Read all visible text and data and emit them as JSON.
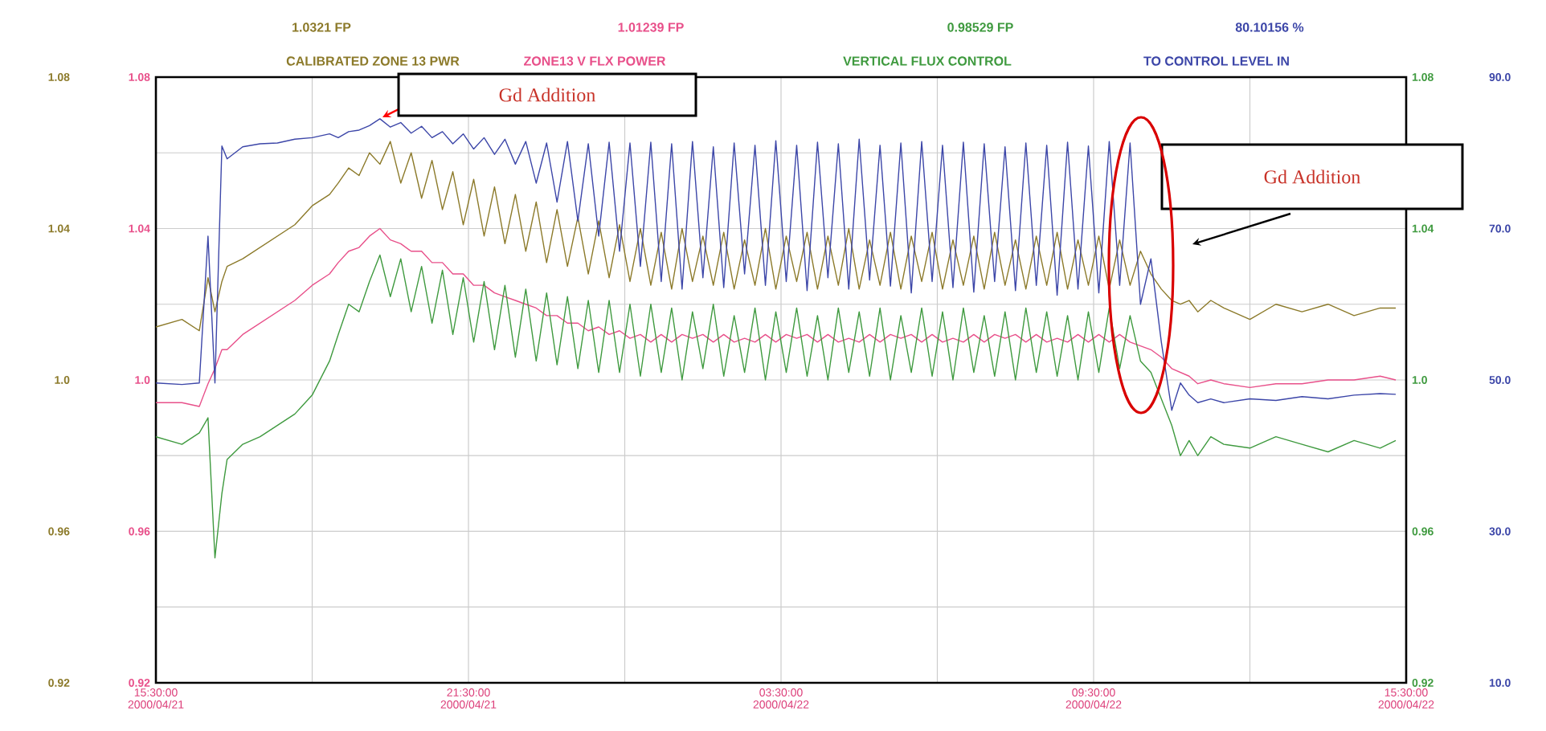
{
  "chart_data": {
    "type": "line",
    "xlim": [
      "2000-04-21T15:30",
      "2000-04-22T15:30"
    ],
    "xticks": [
      {
        "value": "2000-04-21T15:30",
        "label": "15:30:00 2000/04/21"
      },
      {
        "value": "2000-04-21T18:30",
        "label": null
      },
      {
        "value": "2000-04-21T21:30",
        "label": "21:30:00 2000/04/21"
      },
      {
        "value": "2000-04-22T00:30",
        "label": null
      },
      {
        "value": "2000-04-22T03:30",
        "label": "03:30:00 2000/04/22"
      },
      {
        "value": "2000-04-22T06:30",
        "label": null
      },
      {
        "value": "2000-04-22T09:30",
        "label": "09:30:00 2000/04/22"
      },
      {
        "value": "2000-04-22T12:30",
        "label": null
      },
      {
        "value": "2000-04-22T15:30",
        "label": "15:30:00 2000/04/22"
      }
    ],
    "ylim": [
      0.92,
      1.08
    ],
    "yticks": [
      {
        "value": 0.92,
        "label": "0.92"
      },
      {
        "value": 0.94,
        "label": null
      },
      {
        "value": 0.96,
        "label": "0.96"
      },
      {
        "value": 0.98,
        "label": null
      },
      {
        "value": 1.0,
        "label": "1.0"
      },
      {
        "value": 1.02,
        "label": null
      },
      {
        "value": 1.04,
        "label": "1.04"
      },
      {
        "value": 1.06,
        "label": null
      },
      {
        "value": 1.08,
        "label": "1.08"
      }
    ],
    "y2lim": [
      0.92,
      1.08
    ],
    "y2ticks": [
      0.92,
      0.96,
      {
        "value": 1.0,
        "label": "1.0"
      },
      1.04,
      1.08
    ],
    "y3lim": [
      10,
      90
    ],
    "y3ticks": [
      {
        "value": 10,
        "label": "10.0"
      },
      {
        "value": 30,
        "label": "30.0"
      },
      {
        "value": 50,
        "label": "50.0"
      },
      {
        "value": 70,
        "label": "70.0"
      },
      {
        "value": 90,
        "label": "90.0"
      }
    ],
    "grid": true,
    "legend": "top",
    "marker": "none",
    "line_style": "solid",
    "annotations": [
      "1.0321 FP",
      "1.01239 FP",
      "0.98529 FP",
      "80.10156 %",
      "Gd Addition",
      "Gd Addition"
    ],
    "x": [
      "2000-04-21T15:30",
      "2000-04-21T16:00",
      "2000-04-21T16:20",
      "2000-04-21T16:30",
      "2000-04-21T16:38",
      "2000-04-21T16:46",
      "2000-04-21T16:52",
      "2000-04-21T17:10",
      "2000-04-21T17:30",
      "2000-04-21T17:50",
      "2000-04-21T18:10",
      "2000-04-21T18:30",
      "2000-04-21T18:50",
      "2000-04-21T19:00",
      "2000-04-21T19:12",
      "2000-04-21T19:24",
      "2000-04-21T19:36",
      "2000-04-21T19:48",
      "2000-04-21T20:00",
      "2000-04-21T20:12",
      "2000-04-21T20:24",
      "2000-04-21T20:36",
      "2000-04-21T20:48",
      "2000-04-21T21:00",
      "2000-04-21T21:12",
      "2000-04-21T21:24",
      "2000-04-21T21:36",
      "2000-04-21T21:48",
      "2000-04-21T22:00",
      "2000-04-21T22:12",
      "2000-04-21T22:24",
      "2000-04-21T22:36",
      "2000-04-21T22:48",
      "2000-04-21T23:00",
      "2000-04-21T23:12",
      "2000-04-21T23:24",
      "2000-04-21T23:36",
      "2000-04-21T23:48",
      "2000-04-22T00:00",
      "2000-04-22T00:12",
      "2000-04-22T00:24",
      "2000-04-22T00:36",
      "2000-04-22T00:48",
      "2000-04-22T01:00",
      "2000-04-22T01:12",
      "2000-04-22T01:24",
      "2000-04-22T01:36",
      "2000-04-22T01:48",
      "2000-04-22T02:00",
      "2000-04-22T02:12",
      "2000-04-22T02:24",
      "2000-04-22T02:36",
      "2000-04-22T02:48",
      "2000-04-22T03:00",
      "2000-04-22T03:12",
      "2000-04-22T03:24",
      "2000-04-22T03:36",
      "2000-04-22T03:48",
      "2000-04-22T04:00",
      "2000-04-22T04:12",
      "2000-04-22T04:24",
      "2000-04-22T04:36",
      "2000-04-22T04:48",
      "2000-04-22T05:00",
      "2000-04-22T05:12",
      "2000-04-22T05:24",
      "2000-04-22T05:36",
      "2000-04-22T05:48",
      "2000-04-22T06:00",
      "2000-04-22T06:12",
      "2000-04-22T06:24",
      "2000-04-22T06:36",
      "2000-04-22T06:48",
      "2000-04-22T07:00",
      "2000-04-22T07:12",
      "2000-04-22T07:24",
      "2000-04-22T07:36",
      "2000-04-22T07:48",
      "2000-04-22T08:00",
      "2000-04-22T08:12",
      "2000-04-22T08:24",
      "2000-04-22T08:36",
      "2000-04-22T08:48",
      "2000-04-22T09:00",
      "2000-04-22T09:12",
      "2000-04-22T09:24",
      "2000-04-22T09:36",
      "2000-04-22T09:48",
      "2000-04-22T10:00",
      "2000-04-22T10:12",
      "2000-04-22T10:24",
      "2000-04-22T10:36",
      "2000-04-22T10:48",
      "2000-04-22T11:00",
      "2000-04-22T11:10",
      "2000-04-22T11:20",
      "2000-04-22T11:30",
      "2000-04-22T11:45",
      "2000-04-22T12:00",
      "2000-04-22T12:30",
      "2000-04-22T13:00",
      "2000-04-22T13:30",
      "2000-04-22T14:00",
      "2000-04-22T14:30",
      "2000-04-22T15:00",
      "2000-04-22T15:18"
    ],
    "series": [
      {
        "name": "CALIBRATED ZONE 13 PWR",
        "color": "#8c7a2a",
        "values": [
          1.014,
          1.016,
          1.013,
          1.027,
          1.018,
          1.026,
          1.03,
          1.032,
          1.035,
          1.038,
          1.041,
          1.046,
          1.049,
          1.052,
          1.056,
          1.054,
          1.06,
          1.057,
          1.063,
          1.052,
          1.06,
          1.048,
          1.058,
          1.045,
          1.055,
          1.041,
          1.053,
          1.038,
          1.051,
          1.036,
          1.049,
          1.034,
          1.047,
          1.031,
          1.045,
          1.03,
          1.043,
          1.028,
          1.042,
          1.027,
          1.041,
          1.026,
          1.04,
          1.025,
          1.039,
          1.024,
          1.04,
          1.026,
          1.038,
          1.025,
          1.039,
          1.024,
          1.037,
          1.025,
          1.04,
          1.024,
          1.038,
          1.026,
          1.039,
          1.024,
          1.038,
          1.025,
          1.04,
          1.024,
          1.037,
          1.025,
          1.039,
          1.024,
          1.038,
          1.026,
          1.039,
          1.024,
          1.037,
          1.025,
          1.038,
          1.024,
          1.039,
          1.025,
          1.037,
          1.024,
          1.038,
          1.025,
          1.039,
          1.024,
          1.037,
          1.025,
          1.038,
          1.024,
          1.037,
          1.025,
          1.034,
          1.028,
          1.024,
          1.021,
          1.02,
          1.021,
          1.018,
          1.021,
          1.019,
          1.016,
          1.02,
          1.018,
          1.02,
          1.017,
          1.019,
          1.019
        ]
      },
      {
        "name": "ZONE13 V FLX POWER",
        "color": "#e8508a",
        "values": [
          0.994,
          0.994,
          0.993,
          0.999,
          1.003,
          1.008,
          1.008,
          1.012,
          1.015,
          1.018,
          1.021,
          1.025,
          1.028,
          1.031,
          1.034,
          1.035,
          1.038,
          1.04,
          1.037,
          1.036,
          1.034,
          1.034,
          1.031,
          1.031,
          1.028,
          1.028,
          1.025,
          1.025,
          1.023,
          1.022,
          1.021,
          1.02,
          1.019,
          1.017,
          1.017,
          1.015,
          1.015,
          1.013,
          1.014,
          1.012,
          1.013,
          1.011,
          1.012,
          1.01,
          1.012,
          1.01,
          1.012,
          1.011,
          1.012,
          1.01,
          1.012,
          1.01,
          1.011,
          1.01,
          1.012,
          1.01,
          1.012,
          1.011,
          1.012,
          1.01,
          1.012,
          1.01,
          1.011,
          1.01,
          1.012,
          1.01,
          1.012,
          1.011,
          1.012,
          1.01,
          1.012,
          1.01,
          1.011,
          1.01,
          1.012,
          1.01,
          1.012,
          1.011,
          1.012,
          1.01,
          1.012,
          1.01,
          1.011,
          1.01,
          1.012,
          1.01,
          1.012,
          1.01,
          1.012,
          1.01,
          1.009,
          1.008,
          1.006,
          1.003,
          1.002,
          1.001,
          0.999,
          1.0,
          0.999,
          0.998,
          0.999,
          0.999,
          1.0,
          1.0,
          1.001,
          1.0
        ]
      },
      {
        "name": "VERTICAL FLUX CONTROL",
        "color": "#3f9a3f",
        "axis": "y2",
        "values": [
          0.985,
          0.983,
          0.986,
          0.99,
          0.953,
          0.97,
          0.979,
          0.983,
          0.985,
          0.988,
          0.991,
          0.996,
          1.005,
          1.012,
          1.02,
          1.018,
          1.026,
          1.033,
          1.022,
          1.032,
          1.018,
          1.03,
          1.015,
          1.029,
          1.012,
          1.027,
          1.01,
          1.026,
          1.008,
          1.025,
          1.006,
          1.024,
          1.005,
          1.023,
          1.004,
          1.022,
          1.003,
          1.021,
          1.002,
          1.021,
          1.002,
          1.02,
          1.001,
          1.02,
          1.002,
          1.019,
          1.0,
          1.018,
          1.003,
          1.02,
          1.001,
          1.017,
          1.002,
          1.019,
          1.0,
          1.018,
          1.002,
          1.019,
          1.001,
          1.017,
          1.0,
          1.019,
          1.002,
          1.018,
          1.001,
          1.019,
          1.0,
          1.017,
          1.002,
          1.019,
          1.001,
          1.018,
          1.0,
          1.019,
          1.002,
          1.017,
          1.001,
          1.018,
          1.0,
          1.019,
          1.002,
          1.018,
          1.001,
          1.017,
          1.0,
          1.018,
          1.002,
          1.019,
          1.003,
          1.017,
          1.005,
          1.002,
          0.995,
          0.988,
          0.98,
          0.984,
          0.98,
          0.985,
          0.983,
          0.982,
          0.985,
          0.983,
          0.981,
          0.984,
          0.982,
          0.984
        ]
      },
      {
        "name": "TO CONTROL LEVEL IN",
        "color": "#3c46a8",
        "axis": "y3",
        "values": [
          49.6,
          49.4,
          49.6,
          69.0,
          49.6,
          80.9,
          79.2,
          80.8,
          81.2,
          81.3,
          81.8,
          82.0,
          82.5,
          82.0,
          82.8,
          83.0,
          83.6,
          84.5,
          83.4,
          84.0,
          82.6,
          83.5,
          82.0,
          82.8,
          81.2,
          82.5,
          80.5,
          82.0,
          79.8,
          81.8,
          78.5,
          81.5,
          76.0,
          81.3,
          73.5,
          81.5,
          71.0,
          81.2,
          69.0,
          81.4,
          67.0,
          81.3,
          65.0,
          81.4,
          63.0,
          81.2,
          62.0,
          81.5,
          63.5,
          80.8,
          62.2,
          81.3,
          64.0,
          81.0,
          62.5,
          81.6,
          63.0,
          81.0,
          61.8,
          81.4,
          63.5,
          81.2,
          62.0,
          81.8,
          63.2,
          81.0,
          62.4,
          81.3,
          61.5,
          81.5,
          63.0,
          81.0,
          62.2,
          81.4,
          61.6,
          81.2,
          63.0,
          80.8,
          61.8,
          81.3,
          62.5,
          81.0,
          61.2,
          81.4,
          62.0,
          80.9,
          61.5,
          81.5,
          62.5,
          81.3,
          60.0,
          66.0,
          55.0,
          46.0,
          49.6,
          48.0,
          47.0,
          47.5,
          47.0,
          47.5,
          47.3,
          47.8,
          47.5,
          48.0,
          48.2,
          48.1
        ]
      }
    ]
  }
}
